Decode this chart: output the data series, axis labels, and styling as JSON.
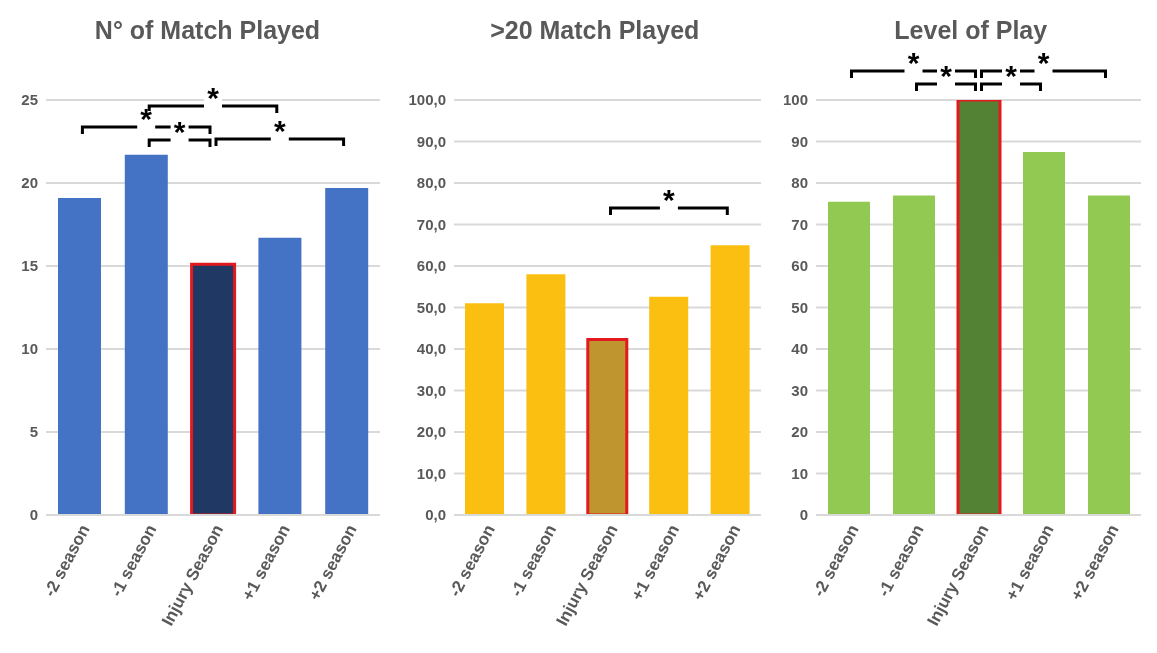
{
  "chart_data": [
    {
      "type": "bar",
      "title": "N° of Match Played",
      "categories": [
        "-2 season",
        "-1 season",
        "Injury Season",
        "+1 season",
        "+2 season"
      ],
      "values": [
        19.1,
        21.7,
        15.1,
        16.7,
        19.7
      ],
      "colors": [
        "#4472c4",
        "#4472c4",
        "#1f3864",
        "#4472c4",
        "#4472c4"
      ],
      "ylim": [
        0,
        25
      ],
      "yticks": [
        0,
        5,
        10,
        15,
        20,
        25
      ],
      "grid": "y",
      "annotations": [
        "*",
        "*",
        "*",
        "*"
      ]
    },
    {
      "type": "bar",
      "title": ">20 Match Played",
      "categories": [
        "-2 season",
        "-1 season",
        "Injury Season",
        "+1 season",
        "+2 season"
      ],
      "values": [
        51,
        58,
        42.3,
        52.6,
        65
      ],
      "colors": [
        "#fbbf12",
        "#fbbf12",
        "#bf9530",
        "#fbbf12",
        "#fbbf12"
      ],
      "ylim": [
        0,
        100
      ],
      "yticks": [
        {
          "value": 0,
          "label": "0,0"
        },
        {
          "value": 10,
          "label": "10,0"
        },
        {
          "value": 20,
          "label": "20,0"
        },
        {
          "value": 30,
          "label": "30,0"
        },
        {
          "value": 40,
          "label": "40,0"
        },
        {
          "value": 50,
          "label": "50,0"
        },
        {
          "value": 60,
          "label": "60,0"
        },
        {
          "value": 70,
          "label": "70,0"
        },
        {
          "value": 80,
          "label": "80,0"
        },
        {
          "value": 90,
          "label": "90,0"
        },
        {
          "value": 100,
          "label": "100,0"
        }
      ],
      "grid": "y",
      "annotations": [
        "*"
      ]
    },
    {
      "type": "bar",
      "title": "Level of Play",
      "categories": [
        "-2 season",
        "-1 season",
        "Injury Season",
        "+1 season",
        "+2 season"
      ],
      "values": [
        75.5,
        77,
        100,
        87.5,
        77
      ],
      "colors": [
        "#92c952",
        "#92c952",
        "#548235",
        "#92c952",
        "#92c952"
      ],
      "ylim": [
        0,
        100
      ],
      "yticks": [
        0,
        10,
        20,
        30,
        40,
        50,
        60,
        70,
        80,
        90,
        100
      ],
      "grid": "y",
      "annotations": [
        "*",
        "*",
        "*",
        "*"
      ]
    }
  ]
}
